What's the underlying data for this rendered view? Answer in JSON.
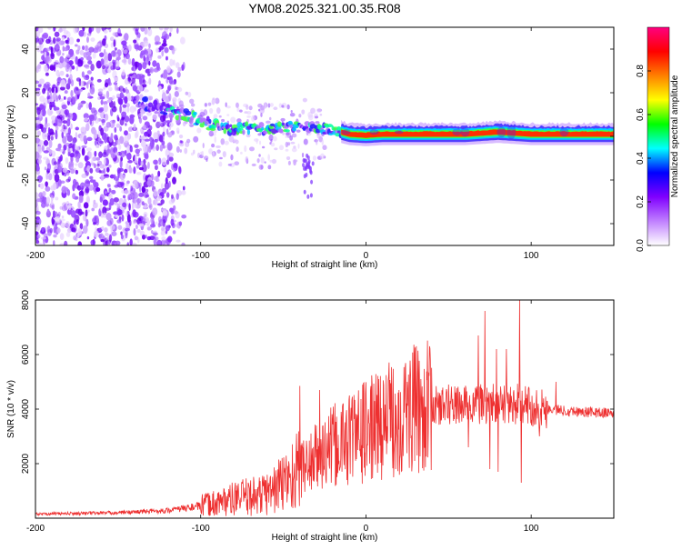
{
  "title": "YM08.2025.321.00.35.R08",
  "chart_data": [
    {
      "type": "heatmap",
      "name": "spectrogram",
      "xlabel": "Height of straight line (km)",
      "ylabel": "Frequency (Hz)",
      "xlim": [
        -200,
        150
      ],
      "ylim": [
        -50,
        50
      ],
      "xticks": [
        -200,
        -100,
        0,
        100
      ],
      "xtick_labels": [
        "-200",
        "-100",
        "0",
        "100"
      ],
      "yticks": [
        -40,
        -20,
        0,
        20,
        40
      ],
      "ytick_labels": [
        "-40",
        "-20",
        "0",
        "20",
        "40"
      ],
      "colorbar": {
        "label": "Normalized spectral amplitude",
        "range": [
          0,
          1
        ],
        "ticks": [
          0.0,
          0.2,
          0.4,
          0.6,
          0.8
        ],
        "tick_labels": [
          "0.0",
          "0.2",
          "0.4",
          "0.6",
          "0.8"
        ],
        "colors": [
          "#ffffff",
          "#c080ff",
          "#8000ff",
          "#0000ff",
          "#00ffff",
          "#00ff00",
          "#ffff00",
          "#ff8000",
          "#ff0000",
          "#ff0080"
        ]
      },
      "ridge": {
        "x": [
          -140,
          -130,
          -120,
          -110,
          -100,
          -90,
          -80,
          -70,
          -60,
          -50,
          -40,
          -30,
          -20,
          -10,
          0,
          10,
          20,
          40,
          60,
          80,
          90,
          100,
          120,
          150
        ],
        "freq": [
          16,
          14,
          12,
          10,
          7,
          5,
          3,
          4,
          3,
          4,
          5,
          4,
          3,
          1,
          0.5,
          1,
          1,
          1,
          1,
          2,
          1.5,
          1,
          1,
          1
        ]
      },
      "noise_region": [
        -200,
        -112
      ]
    },
    {
      "type": "line",
      "name": "snr",
      "xlabel": "Height of straight line (km)",
      "ylabel": "SNR (10 * v/v)",
      "xlim": [
        -200,
        150
      ],
      "ylim": [
        0,
        8000
      ],
      "xticks": [
        -200,
        -100,
        0,
        100
      ],
      "xtick_labels": [
        "-200",
        "-100",
        "0",
        "100"
      ],
      "yticks": [
        2000,
        4000,
        6000,
        8000
      ],
      "ytick_labels": [
        "2000",
        "4000",
        "6000",
        "8000"
      ],
      "color": "#ee3030",
      "envelope": {
        "x": [
          -200,
          -150,
          -120,
          -100,
          -80,
          -60,
          -50,
          -40,
          -30,
          -20,
          -10,
          0,
          10,
          20,
          30,
          40,
          60,
          80,
          90,
          100,
          110,
          130,
          150
        ],
        "y": [
          150,
          200,
          280,
          450,
          700,
          900,
          1300,
          1800,
          2200,
          2600,
          2900,
          3200,
          3500,
          3800,
          4000,
          4100,
          4150,
          4200,
          4200,
          4100,
          4000,
          3900,
          3850
        ]
      },
      "spikes": [
        {
          "x": -40,
          "y": 4850
        },
        {
          "x": -28,
          "y": 4700
        },
        {
          "x": -10,
          "y": 4500
        },
        {
          "x": 25,
          "y": 5000
        },
        {
          "x": 50,
          "y": 4900
        },
        {
          "x": 68,
          "y": 6700
        },
        {
          "x": 72,
          "y": 7600
        },
        {
          "x": 79,
          "y": 6200
        },
        {
          "x": 85,
          "y": 6200
        },
        {
          "x": 93,
          "y": 8000
        },
        {
          "x": 115,
          "y": 5000
        }
      ],
      "dips": [
        {
          "x": 18,
          "y": 1800
        },
        {
          "x": 62,
          "y": 2600
        },
        {
          "x": 75,
          "y": 1800
        },
        {
          "x": 80,
          "y": 1700
        },
        {
          "x": 94,
          "y": 1300
        },
        {
          "x": 105,
          "y": 3000
        }
      ]
    }
  ]
}
